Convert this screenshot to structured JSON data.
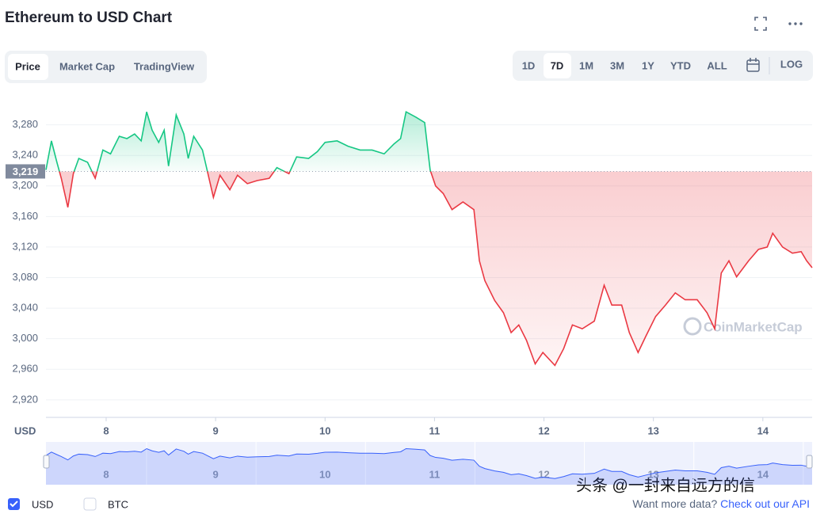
{
  "header": {
    "title": "Ethereum to USD Chart"
  },
  "tabs": [
    "Price",
    "Market Cap",
    "TradingView"
  ],
  "ranges": [
    "1D",
    "7D",
    "1M",
    "3M",
    "1Y",
    "YTD",
    "ALL",
    "LOG"
  ],
  "chart_data": {
    "type": "line",
    "ylabel": "USD",
    "x": [
      7.45,
      7.5,
      7.55,
      7.59,
      7.65,
      7.7,
      7.75,
      7.83,
      7.9,
      7.97,
      8.04,
      8.12,
      8.19,
      8.26,
      8.32,
      8.37,
      8.42,
      8.48,
      8.53,
      8.57,
      8.64,
      8.71,
      8.75,
      8.8,
      8.88,
      8.93,
      8.98,
      9.04,
      9.13,
      9.2,
      9.29,
      9.38,
      9.49,
      9.56,
      9.67,
      9.74,
      9.85,
      9.93,
      10,
      10.11,
      10.21,
      10.32,
      10.43,
      10.54,
      10.63,
      10.69,
      10.74,
      10.83,
      10.91,
      10.96,
      11.01,
      11.08,
      11.16,
      11.26,
      11.36,
      11.41,
      11.46,
      11.55,
      11.63,
      11.7,
      11.77,
      11.84,
      11.92,
      11.99,
      12.1,
      12.18,
      12.26,
      12.35,
      12.46,
      12.55,
      12.62,
      12.71,
      12.78,
      12.86,
      12.93,
      13.02,
      13.11,
      13.2,
      13.29,
      13.4,
      13.49,
      13.56,
      13.62,
      13.69,
      13.76,
      13.87,
      13.96,
      14.04,
      14.09,
      14.18,
      14.27,
      14.35,
      14.4,
      14.45
    ],
    "series": [
      {
        "name": "USD",
        "color": "#16c784",
        "color_below": "#ea3943",
        "values": [
          3221,
          3259,
          3231,
          3210,
          3172,
          3216,
          3236,
          3231,
          3210,
          3247,
          3242,
          3265,
          3262,
          3268,
          3259,
          3297,
          3273,
          3257,
          3273,
          3226,
          3293,
          3268,
          3236,
          3265,
          3247,
          3216,
          3185,
          3214,
          3195,
          3214,
          3203,
          3207,
          3210,
          3224,
          3216,
          3238,
          3236,
          3245,
          3257,
          3259,
          3252,
          3247,
          3247,
          3242,
          3255,
          3262,
          3297,
          3290,
          3283,
          3221,
          3200,
          3190,
          3169,
          3179,
          3169,
          3102,
          3076,
          3050,
          3034,
          3008,
          3018,
          2998,
          2967,
          2982,
          2965,
          2987,
          3018,
          3013,
          3023,
          3070,
          3044,
          3044,
          3008,
          2982,
          3003,
          3029,
          3044,
          3060,
          3051,
          3051,
          3034,
          3013,
          3086,
          3102,
          3081,
          3102,
          3117,
          3120,
          3138,
          3120,
          3112,
          3114,
          3102,
          3093
        ]
      }
    ],
    "reference": {
      "value": 3219,
      "label": "3,219"
    },
    "xlim": [
      7.45,
      14.45
    ],
    "ylim": [
      2897,
      3319
    ],
    "xticks": [
      8,
      9,
      10,
      11,
      12,
      13,
      14
    ],
    "yticks": [
      {
        "value": 2920,
        "label": "2,920"
      },
      {
        "value": 2960,
        "label": "2,960"
      },
      {
        "value": 3000,
        "label": "3,000"
      },
      {
        "value": 3040,
        "label": "3,040"
      },
      {
        "value": 3080,
        "label": "3,080"
      },
      {
        "value": 3120,
        "label": "3,120"
      },
      {
        "value": 3160,
        "label": "3,160"
      },
      {
        "value": 3200,
        "label": "3,200"
      },
      {
        "value": 3240,
        "label": "3,240"
      },
      {
        "value": 3280,
        "label": "3,280"
      }
    ],
    "grid": true,
    "navigator_color": "#3861fb",
    "watermark": "CoinMarketCap"
  },
  "compare": "BTC",
  "footer": {
    "prompt": "Want more data?",
    "link": "Check out our API"
  },
  "overlay": "头条 @一封来自远方的信"
}
